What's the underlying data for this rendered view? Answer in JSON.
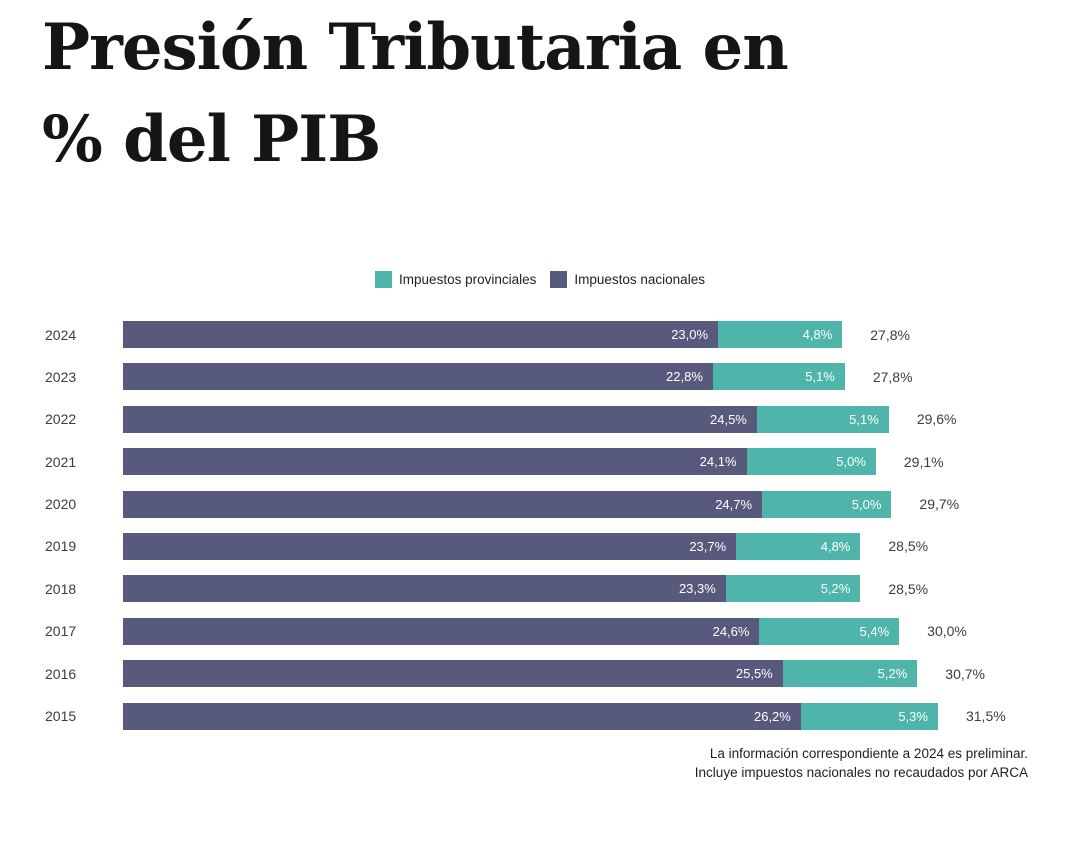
{
  "title": {
    "full": "Presión Tributaria en % del PIB",
    "line1": "Presión Tributaria en",
    "line2": "% del PIB"
  },
  "colors": {
    "provincial": "#4fb5aa",
    "national": "#585a7d",
    "bar_value_text": "#ffffff",
    "axis_text": "#3d3d3d",
    "title_text": "#151515",
    "background": "#ffffff"
  },
  "legend": {
    "items": [
      {
        "label": "Impuestos provinciales",
        "color": "#4fb5aa"
      },
      {
        "label": "Impuestos nacionales",
        "color": "#585a7d"
      }
    ]
  },
  "footnote": {
    "line1": "La información correspondiente a 2024 es preliminar.",
    "line2": "Incluye impuestos nacionales no recaudados por ARCA"
  },
  "chart_data": {
    "type": "bar",
    "orientation": "horizontal",
    "stacked": true,
    "title": "Presión Tributaria en % del PIB",
    "categories": [
      "2024",
      "2023",
      "2022",
      "2021",
      "2020",
      "2019",
      "2018",
      "2017",
      "2016",
      "2015"
    ],
    "series": [
      {
        "name": "Impuestos nacionales",
        "color": "#585a7d",
        "values": [
          23.0,
          22.8,
          24.5,
          24.1,
          24.7,
          23.7,
          23.3,
          24.6,
          25.5,
          26.2
        ],
        "labels": [
          "23,0%",
          "22,8%",
          "24,5%",
          "24,1%",
          "24,7%",
          "23,7%",
          "23,3%",
          "24,6%",
          "25,5%",
          "26,2%"
        ]
      },
      {
        "name": "Impuestos provinciales",
        "color": "#4fb5aa",
        "values": [
          4.8,
          5.1,
          5.1,
          5.0,
          5.0,
          4.8,
          5.2,
          5.4,
          5.2,
          5.3
        ],
        "labels": [
          "4,8%",
          "5,1%",
          "5,1%",
          "5,0%",
          "5,0%",
          "4,8%",
          "5,2%",
          "5,4%",
          "5,2%",
          "5,3%"
        ]
      }
    ],
    "totals": [
      27.8,
      27.8,
      29.6,
      29.1,
      29.7,
      28.5,
      28.5,
      30.0,
      30.7,
      31.5
    ],
    "total_labels": [
      "27,8%",
      "27,8%",
      "29,6%",
      "29,1%",
      "29,7%",
      "28,5%",
      "28,5%",
      "30,0%",
      "30,7%",
      "31,5%"
    ],
    "xlim": [
      0,
      31.5
    ],
    "value_suffix": "%",
    "grid": false,
    "legend_position": "top-center"
  }
}
